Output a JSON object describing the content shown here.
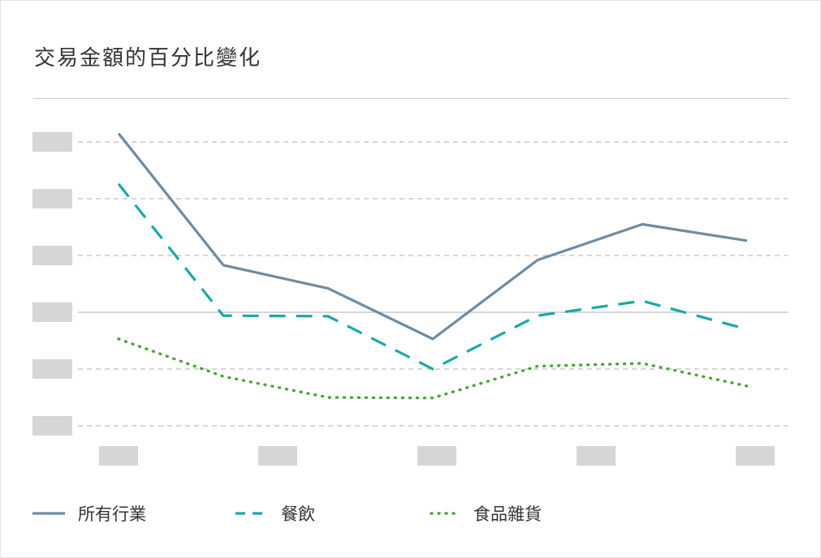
{
  "title": "交易金額的百分比變化",
  "colors": {
    "all_industries": "#6f8ba2",
    "dining": "#1aa8a8",
    "grocery": "#4aa43c",
    "placeholder": "#d6d6d6",
    "gridline": "#bdbdbd",
    "baseline": "#bdbdbd"
  },
  "chart_data": {
    "type": "line",
    "title": "交易金額的百分比變化",
    "x_tick_labels_redacted": true,
    "y_tick_labels_redacted": true,
    "x": [
      1,
      2,
      3,
      4,
      5,
      6,
      7
    ],
    "ylim": [
      -2.0,
      3.0
    ],
    "y_gridlines": [
      -2,
      -1,
      0,
      1,
      2,
      3
    ],
    "baseline": 0,
    "grid": true,
    "legend_position": "bottom",
    "series": [
      {
        "name": "所有行業",
        "style": "solid",
        "values": [
          3.15,
          0.83,
          0.42,
          -0.47,
          0.92,
          1.55,
          1.26
        ]
      },
      {
        "name": "餐飲",
        "style": "dashed",
        "values": [
          2.26,
          -0.06,
          -0.07,
          -1.0,
          -0.06,
          0.2,
          -0.3
        ]
      },
      {
        "name": "食品雜貨",
        "style": "dotted",
        "values": [
          -0.47,
          -1.13,
          -1.5,
          -1.51,
          -0.95,
          -0.9,
          -1.3
        ]
      }
    ]
  }
}
